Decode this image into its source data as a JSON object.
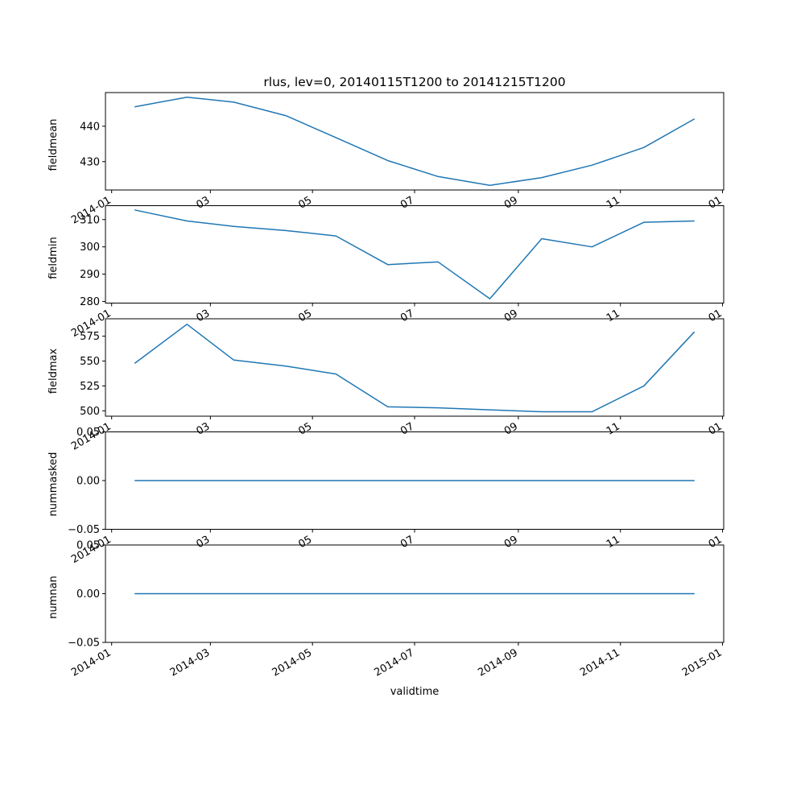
{
  "figure": {
    "title": "rlus, lev=0, 20140115T1200 to 20141215T1200",
    "xlabel": "validtime",
    "background": "#ffffff",
    "line_color": "#1f77b4",
    "spine_color": "#000000"
  },
  "chart_data": {
    "type": "line",
    "title": "rlus, lev=0, 20140115T1200 to 20141215T1200",
    "xlabel": "validtime",
    "grid": false,
    "legend": false,
    "x_dates": [
      "2014-01-15",
      "2014-02-15",
      "2014-03-15",
      "2014-04-15",
      "2014-05-15",
      "2014-06-15",
      "2014-07-15",
      "2014-08-15",
      "2014-09-15",
      "2014-10-15",
      "2014-11-15",
      "2014-12-15"
    ],
    "x_days": [
      14,
      45,
      73,
      104,
      134,
      165,
      195,
      226,
      257,
      287,
      318,
      348
    ],
    "xlim_days": [
      -3.7,
      365.7
    ],
    "xticks": {
      "days": [
        0,
        59,
        120,
        181,
        243,
        304,
        365
      ],
      "short_labels": [
        "2014-01",
        "03",
        "05",
        "07",
        "09",
        "11",
        "01"
      ],
      "full_labels": [
        "2014-01",
        "2014-03",
        "2014-05",
        "2014-07",
        "2014-09",
        "2014-11",
        "2015-01"
      ]
    },
    "subplots": [
      {
        "ylabel": "fieldmean",
        "values": [
          445.5,
          448.2,
          446.8,
          443.0,
          436.8,
          430.3,
          425.8,
          423.3,
          425.5,
          429.0,
          434.0,
          442.0
        ],
        "ylim": [
          422.0,
          449.5
        ],
        "yticks": [
          430,
          440
        ],
        "ytick_labels": [
          "430",
          "440"
        ]
      },
      {
        "ylabel": "fieldmin",
        "values": [
          313.5,
          309.5,
          307.5,
          306.0,
          304.0,
          293.5,
          294.5,
          281.0,
          303.0,
          300.0,
          309.0,
          309.5
        ],
        "ylim": [
          279.4,
          315.1
        ],
        "yticks": [
          280,
          290,
          300,
          310
        ],
        "ytick_labels": [
          "280",
          "290",
          "300",
          "310"
        ]
      },
      {
        "ylabel": "fieldmax",
        "values": [
          548,
          587,
          551,
          545,
          537,
          504,
          503,
          501,
          499,
          499,
          525,
          579
        ],
        "ylim": [
          494.6,
          592.5
        ],
        "yticks": [
          500,
          525,
          550,
          575
        ],
        "ytick_labels": [
          "500",
          "525",
          "550",
          "575"
        ]
      },
      {
        "ylabel": "nummasked",
        "values": [
          0,
          0,
          0,
          0,
          0,
          0,
          0,
          0,
          0,
          0,
          0,
          0
        ],
        "ylim": [
          -0.05,
          0.05
        ],
        "yticks": [
          -0.05,
          0,
          0.05
        ],
        "ytick_labels": [
          "−0.05",
          "0.00",
          "0.05"
        ]
      },
      {
        "ylabel": "numnan",
        "values": [
          0,
          0,
          0,
          0,
          0,
          0,
          0,
          0,
          0,
          0,
          0,
          0
        ],
        "ylim": [
          -0.05,
          0.05
        ],
        "yticks": [
          -0.05,
          0,
          0.05
        ],
        "ytick_labels": [
          "−0.05",
          "0.00",
          "0.05"
        ]
      }
    ]
  }
}
